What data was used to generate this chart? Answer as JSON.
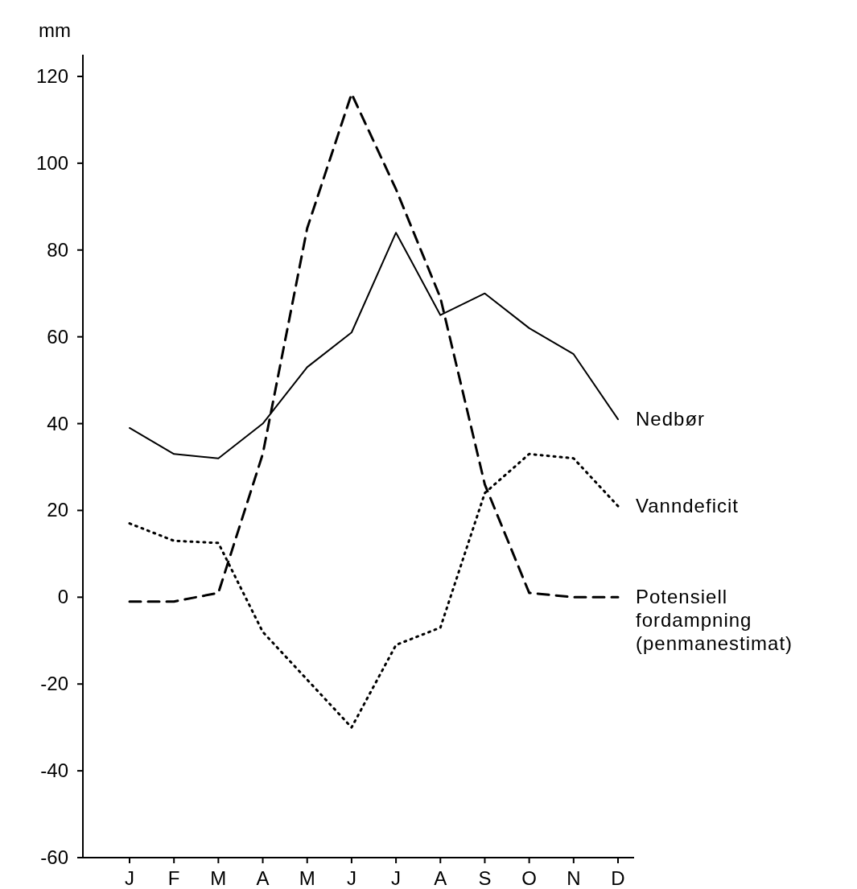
{
  "chart_data": {
    "type": "line",
    "ylabel": "mm",
    "categories": [
      "J",
      "F",
      "M",
      "A",
      "M",
      "J",
      "J",
      "A",
      "S",
      "O",
      "N",
      "D"
    ],
    "ylim": [
      -60,
      125
    ],
    "yticks": [
      -60,
      -40,
      -20,
      0,
      20,
      40,
      60,
      80,
      100,
      120
    ],
    "grid": false,
    "series": [
      {
        "name": "Nedbør",
        "color": "#000000",
        "line_style": "solid",
        "values": [
          39,
          33,
          32,
          40,
          53,
          61,
          84,
          65,
          70,
          62,
          56,
          41
        ]
      },
      {
        "name": "Vanndeficit",
        "color": "#000000",
        "line_style": "dotted",
        "values": [
          17,
          13,
          12.5,
          -8,
          -19,
          -30,
          -11,
          -7,
          24,
          33,
          32,
          21
        ]
      },
      {
        "name": "Potensiell fordampning (penmanestimat)",
        "color": "#000000",
        "line_style": "dashed",
        "values": [
          -1,
          -1,
          1,
          33,
          85,
          116,
          94,
          69,
          26,
          1,
          0,
          0
        ]
      }
    ]
  }
}
